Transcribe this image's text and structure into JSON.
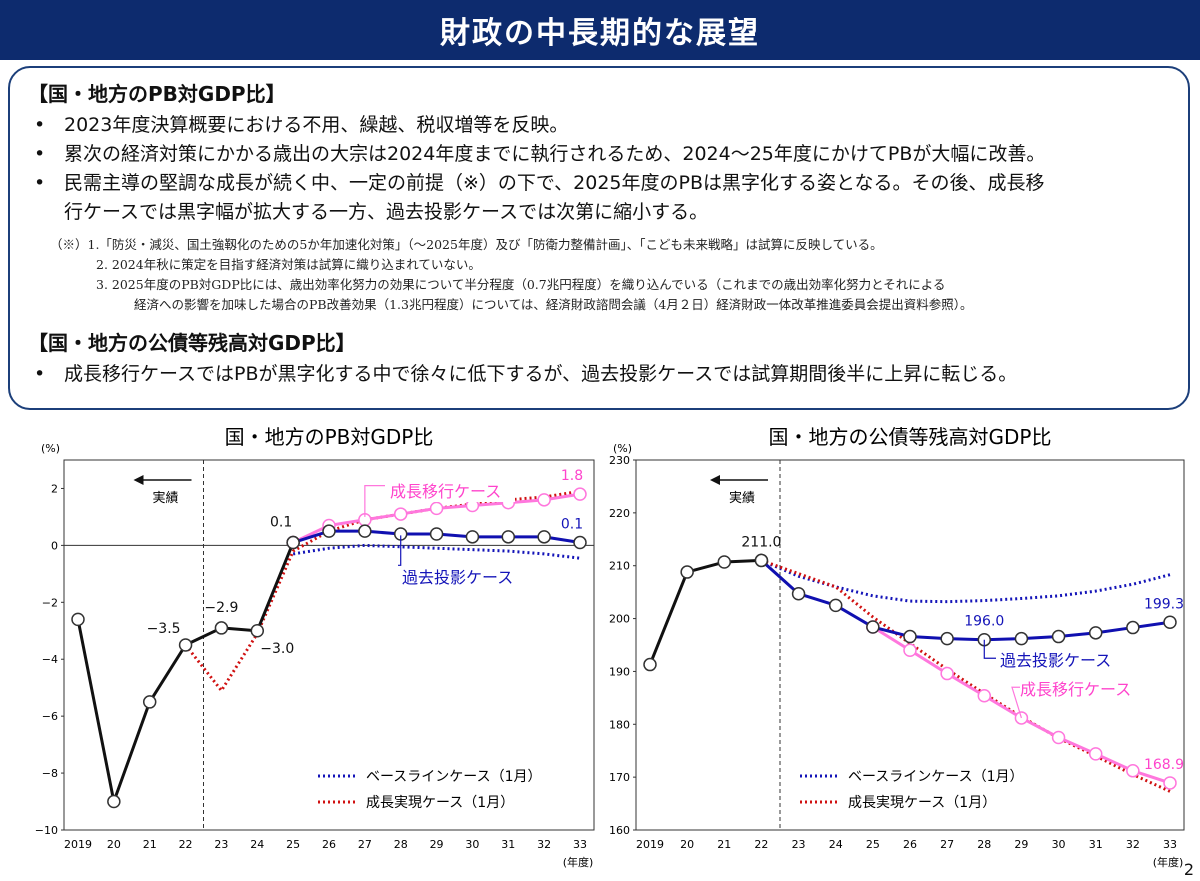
{
  "page": {
    "title": "財政の中長期的な展望",
    "page_number": "2"
  },
  "summary": {
    "section1_head": "【国・地方のPB対GDP比】",
    "bullet_mark": "•",
    "bullets1": [
      {
        "line1": "2023年度決算概要における不用、繰越、税収増等を反映。",
        "line2": ""
      },
      {
        "line1": "累次の経済対策にかかる歳出の大宗は2024年度までに執行されるため、2024～25年度にかけてPBが大幅に改善。",
        "line2": ""
      },
      {
        "line1": "民需主導の堅調な成長が続く中、一定の前提（※）の下で、2025年度のPBは黒字化する姿となる。その後、成長移",
        "line2": "行ケースでは黒字幅が拡大する一方、過去投影ケースでは次第に縮小する。"
      }
    ],
    "notes": [
      "（※）1.「防災・減災、国土強靱化のための5か年加速化対策」（～2025年度）及び「防衛力整備計画」、「こども未来戦略」は試算に反映している。",
      "2. 2024年秋に策定を目指す経済対策は試算に織り込まれていない。",
      "3. 2025年度のPB対GDP比には、歳出効率化努力の効果について半分程度（0.7兆円程度）を織り込んでいる（これまでの歳出効率化努力とそれによる",
      "経済への影響を加味した場合のPB改善効果（1.3兆円程度）については、経済財政諮問会議（4月２日）経済財政一体改革推進委員会提出資料参照）。"
    ],
    "section2_head": "【国・地方の公債等残高対GDP比】",
    "bullets2": [
      {
        "line1": "成長移行ケースではPBが黒字化する中で徐々に低下するが、過去投影ケースでは試算期間後半に上昇に転じる。",
        "line2": ""
      }
    ]
  },
  "chart_data": [
    {
      "type": "line",
      "title": "国・地方のPB対GDP比",
      "unit_label": "(%)",
      "x_tick_labels": [
        "2019",
        "20",
        "21",
        "22",
        "23",
        "24",
        "25",
        "26",
        "27",
        "28",
        "29",
        "30",
        "31",
        "32",
        "33"
      ],
      "x_unit": "(年度)",
      "x": [
        2019,
        2020,
        2021,
        2022,
        2023,
        2024,
        2025,
        2026,
        2027,
        2028,
        2029,
        2030,
        2031,
        2032,
        2033
      ],
      "ylim": [
        -10,
        3
      ],
      "yticks": [
        -10,
        -8,
        -6,
        -4,
        -2,
        0,
        2
      ],
      "actual_label": "実績",
      "actual_divider_x": 2022.5,
      "colors": {
        "actual": "#111111",
        "past": "#1010b0",
        "growth": "#ff77dd",
        "baseline": "#1414b8",
        "realization": "#d01010"
      },
      "series": [
        {
          "name": "",
          "style": "actual",
          "x": [
            2019,
            2020,
            2021,
            2022,
            2023,
            2024,
            2025
          ],
          "values": [
            -2.6,
            -9.0,
            -5.5,
            -3.5,
            -2.9,
            -3.0,
            0.1
          ]
        },
        {
          "name": "過去投影ケース",
          "style": "past",
          "x": [
            2025,
            2026,
            2027,
            2028,
            2029,
            2030,
            2031,
            2032,
            2033
          ],
          "values": [
            0.1,
            0.5,
            0.5,
            0.4,
            0.4,
            0.3,
            0.3,
            0.3,
            0.1
          ]
        },
        {
          "name": "成長移行ケース",
          "style": "growth",
          "x": [
            2025,
            2026,
            2027,
            2028,
            2029,
            2030,
            2031,
            2032,
            2033
          ],
          "values": [
            0.1,
            0.7,
            0.9,
            1.1,
            1.3,
            1.4,
            1.5,
            1.6,
            1.8
          ]
        },
        {
          "name": "ベースラインケース（1月）",
          "style": "baseline",
          "x": [
            2025,
            2026,
            2027,
            2028,
            2029,
            2030,
            2031,
            2032,
            2033
          ],
          "values": [
            -0.3,
            -0.1,
            0.0,
            -0.05,
            -0.1,
            -0.15,
            -0.2,
            -0.3,
            -0.45
          ]
        },
        {
          "name": "成長実現ケース（1月）",
          "style": "realization",
          "x": [
            2022,
            2023,
            2024,
            2025,
            2026,
            2027,
            2028,
            2029,
            2030,
            2031,
            2032,
            2033
          ],
          "values": [
            -3.5,
            -5.1,
            -3.1,
            -0.2,
            0.5,
            0.9,
            1.1,
            1.3,
            1.45,
            1.6,
            1.7,
            1.9
          ]
        }
      ],
      "annotations": [
        {
          "text": "-3.5",
          "x": 2022,
          "y": -3.5
        },
        {
          "text": "-2.9",
          "x": 2023,
          "y": -2.9
        },
        {
          "text": "-3.0",
          "x": 2024,
          "y": -3.0
        },
        {
          "text": "0.1",
          "x": 2025,
          "y": 0.1
        },
        {
          "text": "1.8",
          "x": 2033,
          "y": 1.8
        },
        {
          "text": "0.1",
          "x": 2033,
          "y": 0.1
        }
      ],
      "legend": [
        "ベースラインケース（1月）",
        "成長実現ケース（1月）"
      ]
    },
    {
      "type": "line",
      "title": "国・地方の公債等残高対GDP比",
      "unit_label": "(%)",
      "x_tick_labels": [
        "2019",
        "20",
        "21",
        "22",
        "23",
        "24",
        "25",
        "26",
        "27",
        "28",
        "29",
        "30",
        "31",
        "32",
        "33"
      ],
      "x_unit": "(年度)",
      "x": [
        2019,
        2020,
        2021,
        2022,
        2023,
        2024,
        2025,
        2026,
        2027,
        2028,
        2029,
        2030,
        2031,
        2032,
        2033
      ],
      "ylim": [
        160,
        230
      ],
      "yticks": [
        160,
        170,
        180,
        190,
        200,
        210,
        220,
        230
      ],
      "actual_label": "実績",
      "actual_divider_x": 2022.5,
      "colors": {
        "actual": "#111111",
        "past": "#1010b0",
        "growth": "#ff77dd",
        "baseline": "#1414b8",
        "realization": "#d01010"
      },
      "series": [
        {
          "name": "",
          "style": "actual",
          "x": [
            2019,
            2020,
            2021,
            2022
          ],
          "values": [
            191.3,
            208.8,
            210.7,
            211.0
          ]
        },
        {
          "name": "過去投影ケース",
          "style": "past",
          "x": [
            2022,
            2023,
            2024,
            2025,
            2026,
            2027,
            2028,
            2029,
            2030,
            2031,
            2032,
            2033
          ],
          "values": [
            211.0,
            204.7,
            202.5,
            198.4,
            196.6,
            196.2,
            196.0,
            196.2,
            196.6,
            197.3,
            198.3,
            199.3
          ]
        },
        {
          "name": "成長移行ケース",
          "style": "growth",
          "x": [
            2025,
            2026,
            2027,
            2028,
            2029,
            2030,
            2031,
            2032,
            2033
          ],
          "values": [
            198.4,
            194.0,
            189.6,
            185.4,
            181.2,
            177.5,
            174.4,
            171.2,
            168.9
          ]
        },
        {
          "name": "ベースラインケース（1月）",
          "style": "baseline",
          "x": [
            2022,
            2023,
            2024,
            2025,
            2026,
            2027,
            2028,
            2029,
            2030,
            2031,
            2032,
            2033
          ],
          "values": [
            211.0,
            208.0,
            206.0,
            204.3,
            203.3,
            203.2,
            203.4,
            203.8,
            204.3,
            205.2,
            206.5,
            208.3
          ]
        },
        {
          "name": "成長実現ケース（1月）",
          "style": "realization",
          "x": [
            2022,
            2023,
            2024,
            2025,
            2026,
            2027,
            2028,
            2029,
            2030,
            2031,
            2032,
            2033
          ],
          "values": [
            211.0,
            208.5,
            206.0,
            200.3,
            195.3,
            190.4,
            185.8,
            181.4,
            177.4,
            174.0,
            170.5,
            167.3
          ]
        }
      ],
      "annotations": [
        {
          "text": "211.0",
          "x": 2022,
          "y": 211.0
        },
        {
          "text": "196.0",
          "x": 2028,
          "y": 196.0
        },
        {
          "text": "199.3",
          "x": 2033,
          "y": 199.3
        },
        {
          "text": "168.9",
          "x": 2033,
          "y": 168.9
        }
      ],
      "legend": [
        "ベースラインケース（1月）",
        "成長実現ケース（1月）"
      ]
    }
  ]
}
